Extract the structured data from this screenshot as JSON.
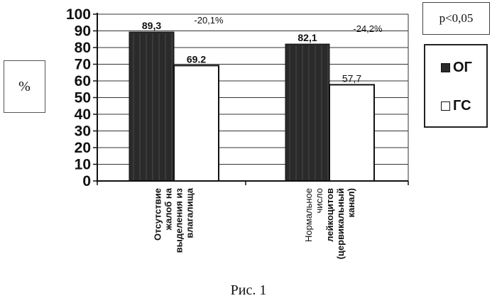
{
  "y_unit_label": "%",
  "p_value_label": "p<0,05",
  "caption": "Рис. 1",
  "colors": {
    "og": "#2a2a2a",
    "gs": "#ffffff"
  },
  "chart_data": {
    "type": "bar",
    "categories": [
      [
        "Отсутствие",
        "жалоб на",
        "выделения из",
        "влагалища"
      ],
      [
        "Нормальное",
        "число",
        "лейкоцитов",
        "(цервикальный",
        "канал)"
      ]
    ],
    "series": [
      {
        "name": "ОГ",
        "values": [
          89.3,
          82.1
        ]
      },
      {
        "name": "ГС",
        "values": [
          69.2,
          57.7
        ]
      }
    ],
    "value_labels": [
      [
        "89,3",
        "82,1"
      ],
      [
        "69.2",
        "57,7"
      ]
    ],
    "change_labels": [
      "-20,1%",
      "-24,2%"
    ],
    "ylim": [
      0,
      100
    ],
    "yticks": [
      0,
      10,
      20,
      30,
      40,
      50,
      60,
      70,
      80,
      90,
      100
    ],
    "grid": true,
    "legend": "right"
  }
}
